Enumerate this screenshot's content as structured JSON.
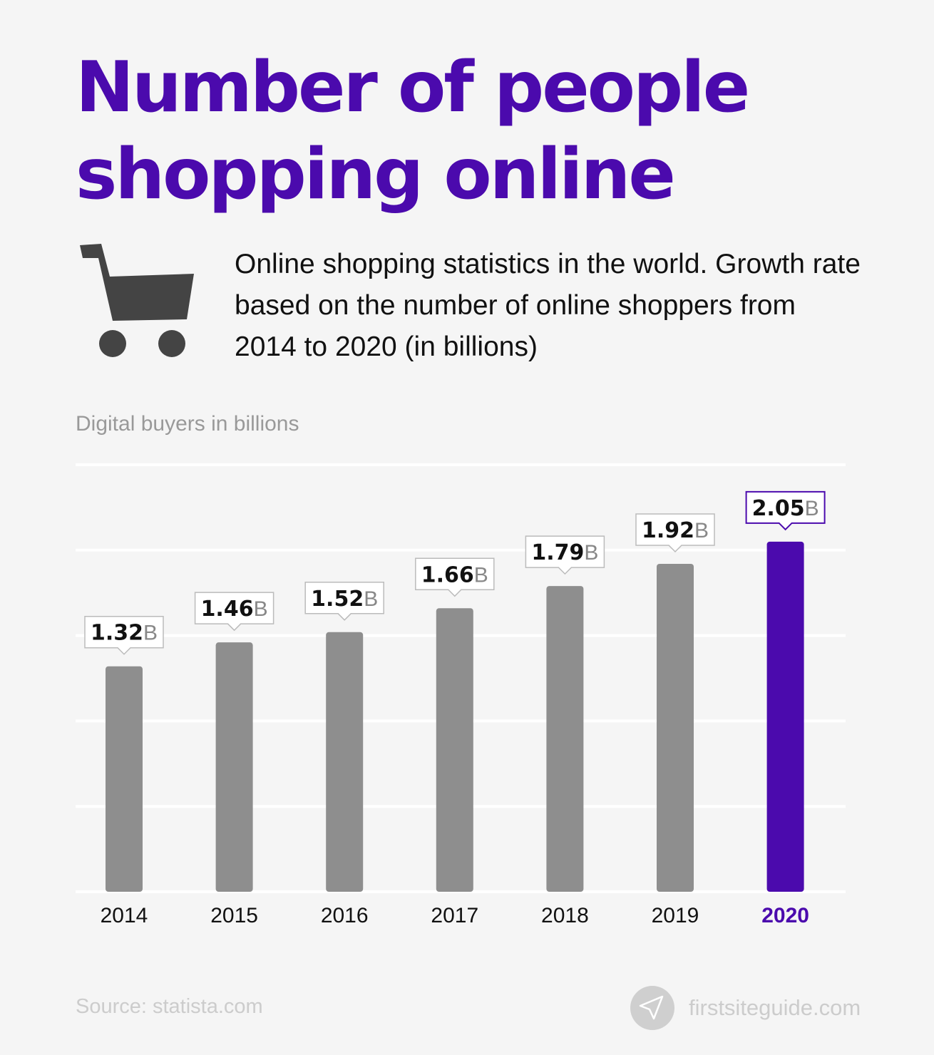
{
  "title": "Number of people shopping online",
  "description": "Online shopping statistics in the world. Growth rate based on the number of online shoppers from 2014 to 2020 (in billions)",
  "icons": {
    "cart": "shopping-cart-icon",
    "brand": "paper-plane-icon"
  },
  "colors": {
    "accent": "#4b0aad",
    "bar": "#8e8e8e",
    "background": "#f5f5f5"
  },
  "chart_data": {
    "type": "bar",
    "ylabel": "Digital buyers in billions",
    "categories": [
      "2014",
      "2015",
      "2016",
      "2017",
      "2018",
      "2019",
      "2020"
    ],
    "values": [
      1.32,
      1.46,
      1.52,
      1.66,
      1.79,
      1.92,
      2.05
    ],
    "data_labels": [
      "1.32",
      "1.46",
      "1.52",
      "1.66",
      "1.79",
      "1.92",
      "2.05"
    ],
    "unit_suffix": "B",
    "highlight": "2020",
    "ylim": [
      0,
      2.5
    ],
    "grid": true
  },
  "footer": {
    "source": "Source: statista.com",
    "brand": "firstsiteguide.com"
  }
}
